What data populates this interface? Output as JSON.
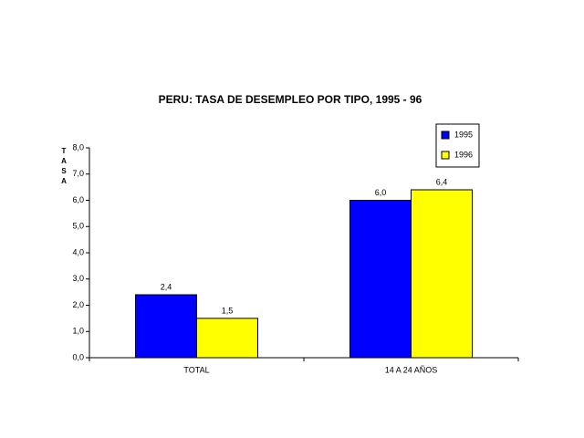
{
  "chart_data": {
    "type": "bar",
    "title": "PERU: TASA DE DESEMPLEO POR TIPO, 1995 - 96",
    "y_label": "TASA",
    "categories": [
      "TOTAL",
      "14 A 24 AÑOS"
    ],
    "series": [
      {
        "name": "1995",
        "color": "#0000ff",
        "values": [
          2.4,
          6.0
        ],
        "value_labels": [
          "2,4",
          "6,0"
        ]
      },
      {
        "name": "1996",
        "color": "#ffff00",
        "values": [
          1.5,
          6.4
        ],
        "value_labels": [
          "1,5",
          "6,4"
        ]
      }
    ],
    "ylim": [
      0,
      8
    ],
    "yticks": [
      {
        "value": 0,
        "label": "0,0"
      },
      {
        "value": 1,
        "label": "1,0"
      },
      {
        "value": 2,
        "label": "2,0"
      },
      {
        "value": 3,
        "label": "3,0"
      },
      {
        "value": 4,
        "label": "4,0"
      },
      {
        "value": 5,
        "label": "5,0"
      },
      {
        "value": 6,
        "label": "6,0"
      },
      {
        "value": 7,
        "label": "7,0"
      },
      {
        "value": 8,
        "label": "8,0"
      }
    ],
    "grid": false,
    "legend": "upper right"
  }
}
